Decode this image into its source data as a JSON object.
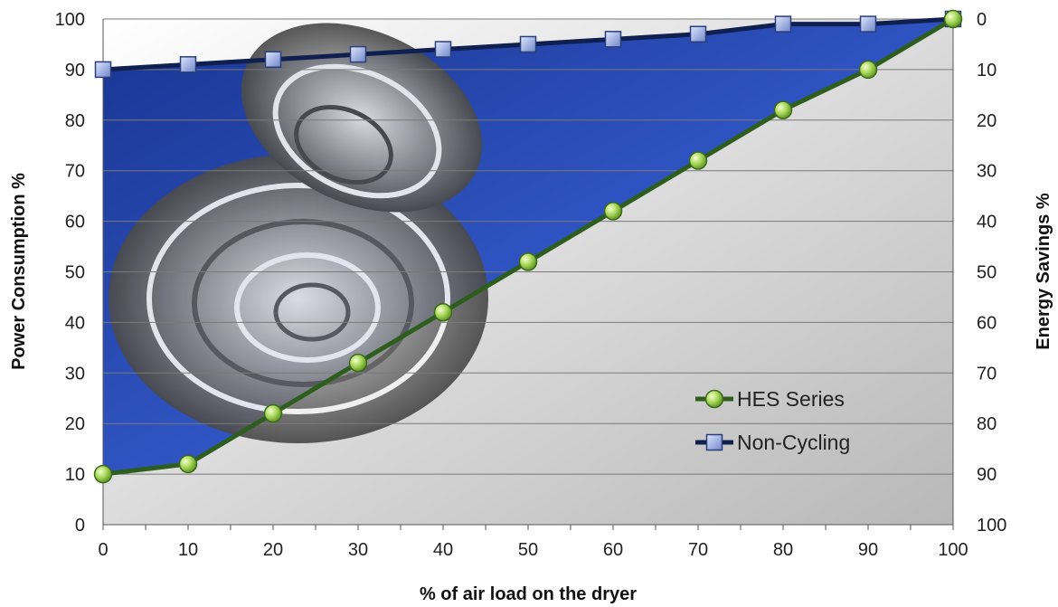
{
  "chart_data": {
    "type": "line",
    "title": "",
    "xlabel": "% of air load on the dryer",
    "ylabel": "Power Consumption %",
    "y2label": "Energy Savings %",
    "x": [
      0,
      10,
      20,
      30,
      40,
      50,
      60,
      70,
      80,
      90,
      100
    ],
    "xlim": [
      0,
      100
    ],
    "ylim": [
      0,
      100
    ],
    "y2lim": [
      100,
      0
    ],
    "x_ticks": [
      "0",
      "10",
      "20",
      "30",
      "40",
      "50",
      "60",
      "70",
      "80",
      "90",
      "100"
    ],
    "y_ticks": [
      "0",
      "10",
      "20",
      "30",
      "40",
      "50",
      "60",
      "70",
      "80",
      "90",
      "100"
    ],
    "y2_ticks": [
      "100",
      "90",
      "80",
      "70",
      "60",
      "50",
      "40",
      "30",
      "20",
      "10",
      "0"
    ],
    "grid": true,
    "legend_position": "bottom-right",
    "series": [
      {
        "name": "HES Series",
        "values": [
          10,
          12,
          22,
          32,
          42,
          52,
          62,
          72,
          82,
          90,
          100
        ],
        "color": "#2e5e1e",
        "marker": "circle",
        "marker_color": "#a8d85a"
      },
      {
        "name": "Non-Cycling",
        "values": [
          90,
          91,
          92,
          93,
          94,
          95,
          96,
          97,
          99,
          99,
          100
        ],
        "color": "#0f1f4f",
        "marker": "square",
        "marker_color": "#8a9ed8"
      }
    ]
  }
}
